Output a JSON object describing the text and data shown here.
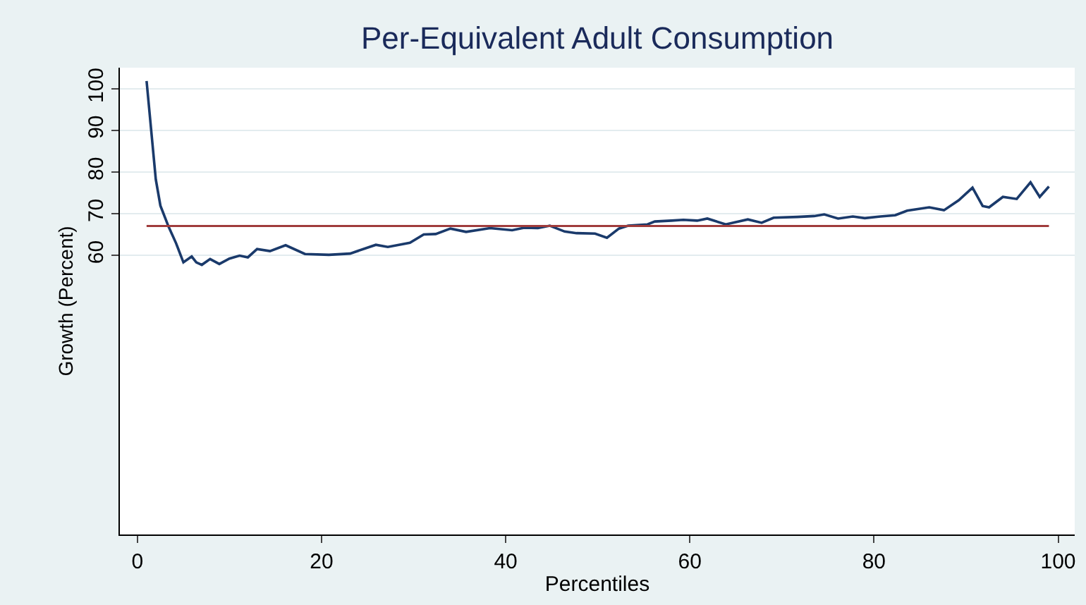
{
  "chart_data": {
    "type": "line",
    "title": "Per-Equivalent Adult Consumption",
    "xlabel": "Percentiles",
    "ylabel": "Growth (Percent)",
    "x": [
      1.0,
      2.0,
      2.5,
      3.4,
      4.2,
      5.0,
      5.9,
      6.4,
      7.0,
      7.9,
      8.9,
      10.0,
      11.1,
      12.0,
      13.0,
      14.4,
      16.1,
      18.2,
      20.8,
      23.1,
      25.9,
      27.2,
      29.6,
      31.1,
      32.4,
      34.0,
      35.7,
      38.3,
      40.7,
      42.0,
      43.5,
      44.8,
      46.4,
      47.7,
      49.7,
      51.0,
      52.3,
      53.3,
      55.4,
      56.2,
      58.0,
      59.3,
      60.8,
      61.9,
      63.9,
      66.3,
      67.8,
      69.1,
      71.7,
      73.5,
      74.6,
      76.1,
      77.7,
      79.0,
      80.7,
      82.3,
      83.6,
      86.0,
      87.6,
      89.2,
      90.7,
      91.8,
      92.5,
      94.0,
      95.5,
      97.0,
      98.0,
      99.0
    ],
    "series": [
      {
        "color": "#1a3a6b",
        "values": [
          101.8,
          78.2,
          71.9,
          66.8,
          62.9,
          58.3,
          59.7,
          58.3,
          57.7,
          59.1,
          57.9,
          59.2,
          59.9,
          59.5,
          61.5,
          61.0,
          62.4,
          60.3,
          60.1,
          60.4,
          62.5,
          62.0,
          63.0,
          65.0,
          65.1,
          66.4,
          65.6,
          66.5,
          66.0,
          66.6,
          66.5,
          67.1,
          65.7,
          65.3,
          65.2,
          64.2,
          66.4,
          67.1,
          67.4,
          68.1,
          68.3,
          68.5,
          68.3,
          68.8,
          67.4,
          68.6,
          67.8,
          69.0,
          69.2,
          69.4,
          69.8,
          68.8,
          69.3,
          68.9,
          69.3,
          69.6,
          70.7,
          71.5,
          70.8,
          73.2,
          76.2,
          71.8,
          71.5,
          74.0,
          73.5,
          77.5,
          74.0,
          76.5
        ]
      }
    ],
    "xlim": [
      -1.9,
      101.8
    ],
    "xticks": [
      0,
      20,
      40,
      60,
      80,
      100
    ],
    "ylim": [
      -7,
      105
    ],
    "yticks": [
      60,
      70,
      80,
      90,
      100
    ],
    "ref_lines": [
      {
        "axis": "y",
        "value": 67,
        "color": "#a03c3c"
      }
    ],
    "grid": "y",
    "line_style": "solid",
    "marker": "none"
  }
}
